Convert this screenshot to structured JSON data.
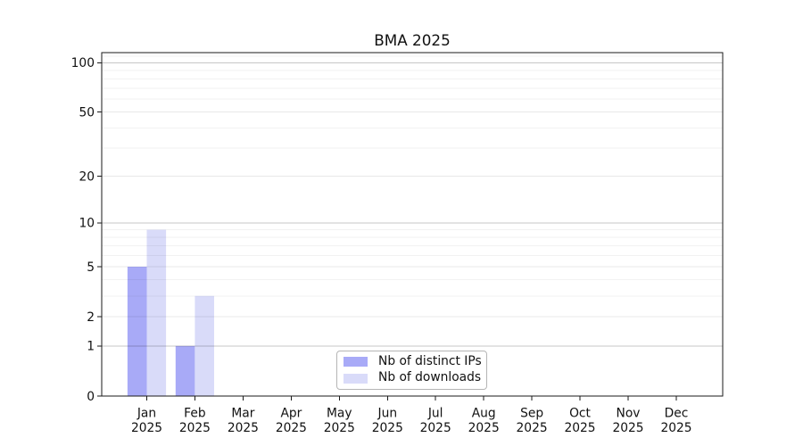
{
  "chart_data": {
    "type": "bar",
    "title": "BMA 2025",
    "x_axis": {
      "categories": [
        "Jan",
        "Feb",
        "Mar",
        "Apr",
        "May",
        "Jun",
        "Jul",
        "Aug",
        "Sep",
        "Oct",
        "Nov",
        "Dec"
      ],
      "year_label": "2025"
    },
    "y_axis": {
      "scale": "log1p",
      "labeled_ticks": [
        0,
        1,
        2,
        5,
        10,
        20,
        50,
        100
      ],
      "decade_ticks": [
        1,
        10,
        100
      ],
      "minor_ticks": [
        3,
        4,
        6,
        7,
        8,
        9,
        30,
        40,
        60,
        70,
        80,
        90,
        110
      ],
      "ymax": 115.3,
      "grid": true
    },
    "series": [
      {
        "name": "Nb of distinct IPs",
        "color": "#a8aaf7",
        "values": [
          5,
          1,
          0,
          0,
          0,
          0,
          0,
          0,
          0,
          0,
          0,
          0
        ]
      },
      {
        "name": "Nb of downloads",
        "color": "#d9dbf9",
        "values": [
          9,
          3,
          0,
          0,
          0,
          0,
          0,
          0,
          0,
          0,
          0,
          0
        ]
      }
    ],
    "legend": {
      "position": "bottom-center"
    }
  },
  "colors": {
    "bar_distinct_ips": "#a8aaf7",
    "bar_downloads": "#d9dbf9",
    "axis_frame": "#1a1a1a",
    "tick_text": "#111111",
    "grid_decade": "rgba(0,0,0,0.22)",
    "grid_labeled": "rgba(0,0,0,0.09)",
    "grid_minor": "rgba(0,0,0,0.05)",
    "legend_border": "#b5b5b5"
  }
}
